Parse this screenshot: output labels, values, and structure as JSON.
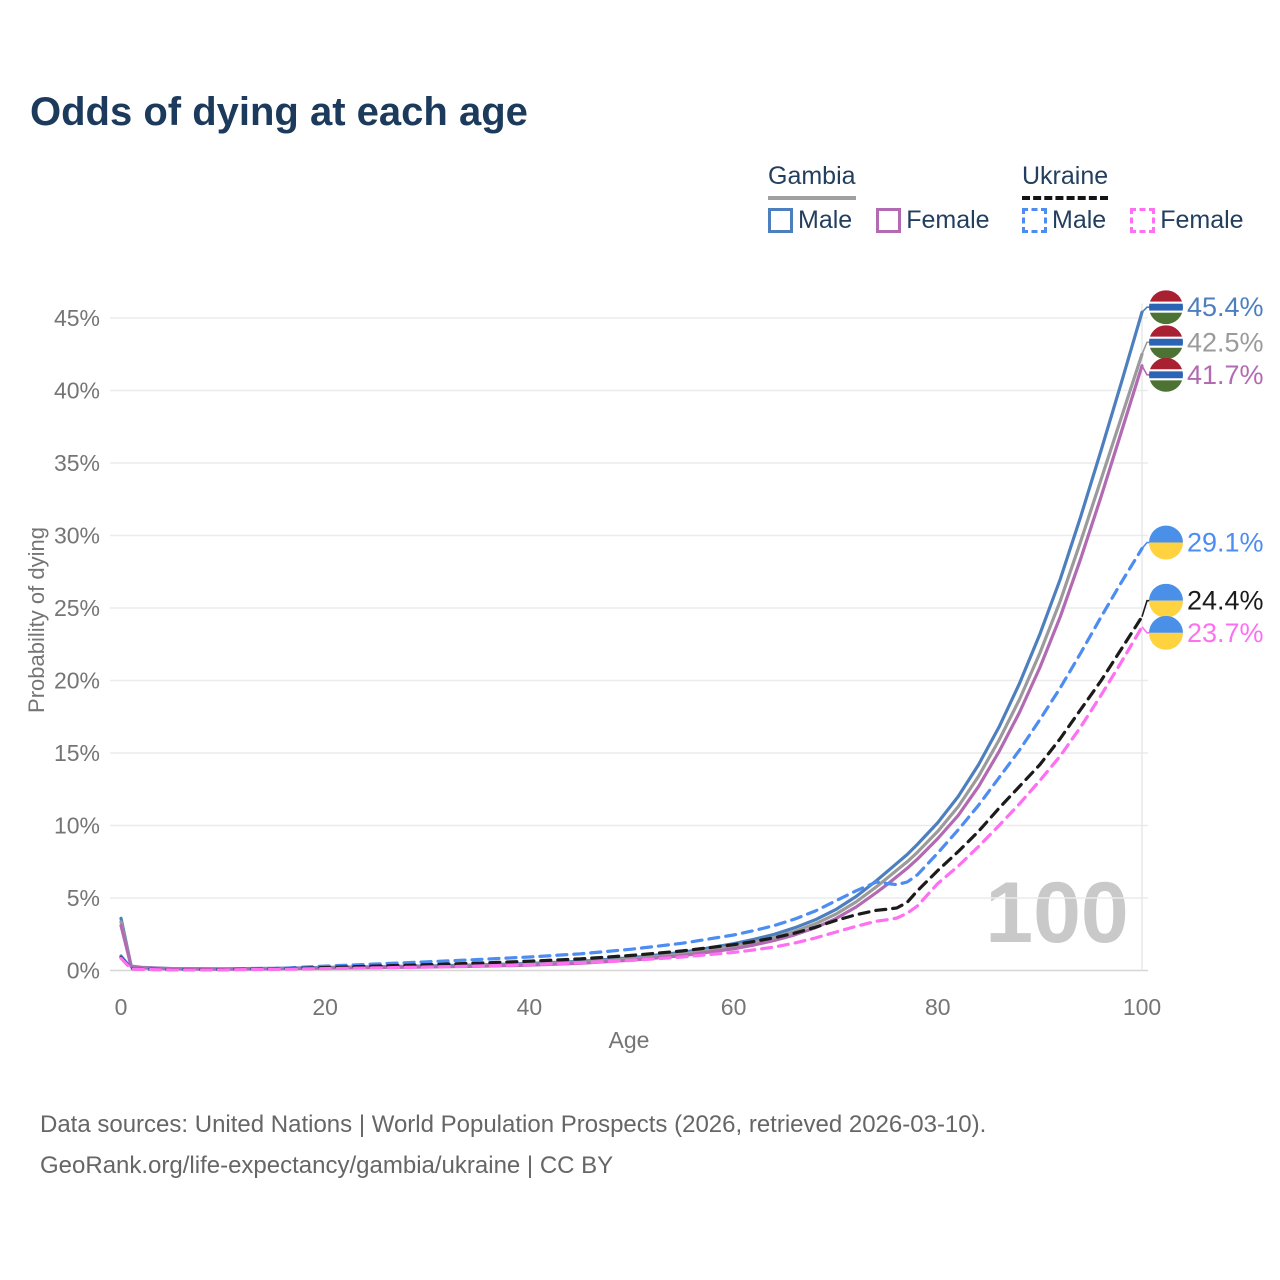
{
  "title": "Odds of dying at each age",
  "legend": {
    "groups": [
      {
        "label": "Gambia",
        "line_style": "solid",
        "underline_color": "#a0a0a0",
        "items": [
          {
            "label": "Male",
            "color": "#4d7fbe"
          },
          {
            "label": "Female",
            "color": "#b26ab2"
          }
        ]
      },
      {
        "label": "Ukraine",
        "line_style": "dashed",
        "underline_color": "#141414",
        "items": [
          {
            "label": "Male",
            "color": "#4d8cf0"
          },
          {
            "label": "Female",
            "color": "#ff6ff2"
          }
        ]
      }
    ]
  },
  "chart_data": {
    "type": "line",
    "title": "Odds of dying at each age",
    "xlabel": "Age",
    "ylabel": "Probability of dying",
    "xlim": [
      0,
      100
    ],
    "ylim_pct": [
      0,
      47
    ],
    "grid": "horizontal",
    "legend_position": "top-right",
    "watermark": "100",
    "x_tick_values": [
      0,
      20,
      40,
      60,
      80,
      100
    ],
    "x_tick_labels": [
      "0",
      "20",
      "40",
      "60",
      "80",
      "100"
    ],
    "y_tick_values": [
      0,
      5,
      10,
      15,
      20,
      25,
      30,
      35,
      40,
      45
    ],
    "y_tick_labels": [
      "0%",
      "5%",
      "10%",
      "15%",
      "20%",
      "25%",
      "30%",
      "35%",
      "40%",
      "45%"
    ],
    "x": [
      0,
      1,
      2,
      5,
      10,
      15,
      20,
      25,
      30,
      35,
      40,
      45,
      50,
      55,
      60,
      62,
      64,
      66,
      68,
      70,
      72,
      74,
      75,
      76,
      77,
      78,
      80,
      82,
      84,
      86,
      88,
      90,
      92,
      94,
      96,
      98,
      100
    ],
    "series": [
      {
        "name": "Gambia Male",
        "color": "#4d7fbe",
        "dash": false,
        "flag": "gambia",
        "end_label": "45.4%",
        "values_pct": [
          3.6,
          0.3,
          0.22,
          0.13,
          0.11,
          0.15,
          0.21,
          0.26,
          0.31,
          0.38,
          0.48,
          0.63,
          0.88,
          1.25,
          1.85,
          2.15,
          2.5,
          2.95,
          3.5,
          4.2,
          5.1,
          6.2,
          6.8,
          7.4,
          8.0,
          8.7,
          10.2,
          12.0,
          14.2,
          16.8,
          19.8,
          23.2,
          27.0,
          31.3,
          35.9,
          40.6,
          45.4
        ]
      },
      {
        "name": "Gambia Both sexes",
        "color": "#9b9b9b",
        "dash": false,
        "flag": "gambia",
        "end_label": "42.5%",
        "values_pct": [
          3.35,
          0.28,
          0.2,
          0.12,
          0.1,
          0.13,
          0.18,
          0.23,
          0.27,
          0.33,
          0.42,
          0.56,
          0.79,
          1.13,
          1.67,
          1.95,
          2.28,
          2.7,
          3.22,
          3.88,
          4.73,
          5.78,
          6.35,
          6.93,
          7.5,
          8.15,
          9.6,
          11.3,
          13.4,
          15.9,
          18.7,
          21.9,
          25.5,
          29.6,
          33.9,
          38.2,
          42.5
        ]
      },
      {
        "name": "Gambia Female",
        "color": "#b26ab2",
        "dash": false,
        "flag": "gambia",
        "end_label": "41.7%",
        "values_pct": [
          3.1,
          0.26,
          0.18,
          0.11,
          0.09,
          0.12,
          0.16,
          0.2,
          0.24,
          0.29,
          0.37,
          0.5,
          0.71,
          1.02,
          1.5,
          1.76,
          2.07,
          2.46,
          2.95,
          3.57,
          4.38,
          5.38,
          5.92,
          6.48,
          7.05,
          7.68,
          9.1,
          10.7,
          12.7,
          15.1,
          17.8,
          20.9,
          24.4,
          28.4,
          32.7,
          37.2,
          41.7
        ]
      },
      {
        "name": "Ukraine Male",
        "color": "#4d8cf0",
        "dash": true,
        "flag": "ukraine",
        "end_label": "29.1%",
        "values_pct": [
          1.0,
          0.15,
          0.1,
          0.08,
          0.08,
          0.13,
          0.3,
          0.45,
          0.6,
          0.76,
          0.93,
          1.15,
          1.47,
          1.88,
          2.45,
          2.75,
          3.1,
          3.55,
          4.1,
          4.8,
          5.5,
          6.1,
          6.0,
          5.92,
          6.1,
          6.6,
          8.1,
          9.7,
          11.4,
          13.3,
          15.2,
          17.3,
          19.5,
          21.9,
          24.4,
          26.8,
          29.1
        ]
      },
      {
        "name": "Ukraine Both sexes",
        "color": "#1b1b1b",
        "dash": true,
        "flag": "ukraine",
        "end_label": "24.4%",
        "values_pct": [
          0.9,
          0.12,
          0.08,
          0.06,
          0.06,
          0.1,
          0.2,
          0.3,
          0.4,
          0.51,
          0.64,
          0.8,
          1.04,
          1.35,
          1.78,
          2.0,
          2.26,
          2.58,
          2.98,
          3.45,
          3.85,
          4.15,
          4.22,
          4.32,
          4.7,
          5.5,
          6.9,
          8.2,
          9.6,
          11.2,
          12.7,
          14.2,
          16.0,
          18.0,
          20.0,
          22.2,
          24.4
        ]
      },
      {
        "name": "Ukraine Female",
        "color": "#ff6ff2",
        "dash": true,
        "flag": "ukraine",
        "end_label": "23.7%",
        "values_pct": [
          0.85,
          0.1,
          0.07,
          0.05,
          0.05,
          0.08,
          0.13,
          0.18,
          0.24,
          0.31,
          0.4,
          0.53,
          0.7,
          0.93,
          1.25,
          1.42,
          1.62,
          1.9,
          2.24,
          2.65,
          3.05,
          3.4,
          3.5,
          3.62,
          3.95,
          4.45,
          6.0,
          7.2,
          8.55,
          10.0,
          11.5,
          13.1,
          14.8,
          16.8,
          19.0,
          21.3,
          23.7
        ]
      }
    ],
    "flag_colors": {
      "gambia": {
        "red": "#a92033",
        "white": "#ffffff",
        "blue": "#2b63b5",
        "green": "#4d7334"
      },
      "ukraine": {
        "blue": "#4a90e8",
        "yellow": "#ffd23f"
      }
    },
    "axis_text_color": "#757575",
    "grid_color": "#ebebeb",
    "baseline_color": "#d6d6d6",
    "watermark_color": "#c9c9c9"
  },
  "footer": {
    "line1": "Data sources: United Nations | World Population Prospects (2026, retrieved 2026-03-10).",
    "line2": "GeoRank.org/life-expectancy/gambia/ukraine | CC BY"
  }
}
